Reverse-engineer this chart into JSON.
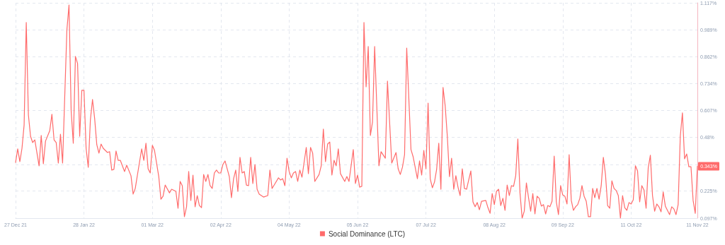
{
  "chart_data": {
    "type": "line",
    "x": [
      "2021-12-27",
      "2021-12-28",
      "2021-12-29",
      "2021-12-30",
      "2021-12-31",
      "2022-01-01",
      "2022-01-02",
      "2022-01-03",
      "2022-01-04",
      "2022-01-05",
      "2022-01-07",
      "2022-01-08",
      "2022-01-09",
      "2022-01-10",
      "2022-01-12",
      "2022-01-13",
      "2022-01-14",
      "2022-01-15",
      "2022-01-16",
      "2022-01-17",
      "2022-01-18",
      "2022-01-20",
      "2022-01-21",
      "2022-01-22",
      "2022-01-23",
      "2022-01-24",
      "2022-01-25",
      "2022-01-26",
      "2022-01-27",
      "2022-01-28",
      "2022-01-29",
      "2022-01-30",
      "2022-01-31",
      "2022-02-01",
      "2022-02-02",
      "2022-02-03",
      "2022-02-04",
      "2022-02-05",
      "2022-02-06",
      "2022-02-08",
      "2022-02-09",
      "2022-02-10",
      "2022-02-11",
      "2022-02-12",
      "2022-02-13",
      "2022-02-14",
      "2022-02-16",
      "2022-02-17",
      "2022-02-19",
      "2022-02-20",
      "2022-02-21",
      "2022-02-22",
      "2022-02-24",
      "2022-02-25",
      "2022-02-26",
      "2022-02-27",
      "2022-02-28",
      "2022-03-01",
      "2022-03-02",
      "2022-03-04",
      "2022-03-05",
      "2022-03-06",
      "2022-03-07",
      "2022-03-09",
      "2022-03-10",
      "2022-03-12",
      "2022-03-13",
      "2022-03-14",
      "2022-03-15",
      "2022-03-16",
      "2022-03-17",
      "2022-03-18",
      "2022-03-19",
      "2022-03-20",
      "2022-03-21",
      "2022-03-22",
      "2022-03-23",
      "2022-03-24",
      "2022-03-25",
      "2022-03-26",
      "2022-03-27",
      "2022-03-28",
      "2022-03-29",
      "2022-03-30",
      "2022-03-31",
      "2022-04-01",
      "2022-04-02",
      "2022-04-03",
      "2022-04-04",
      "2022-04-06",
      "2022-04-07",
      "2022-04-08",
      "2022-04-09",
      "2022-04-10",
      "2022-04-11",
      "2022-04-12",
      "2022-04-13",
      "2022-04-14",
      "2022-04-15",
      "2022-04-16",
      "2022-04-17",
      "2022-04-18",
      "2022-04-19",
      "2022-04-20",
      "2022-04-22",
      "2022-04-24",
      "2022-04-25",
      "2022-04-26",
      "2022-04-27",
      "2022-04-29",
      "2022-04-30",
      "2022-05-01",
      "2022-05-02",
      "2022-05-03",
      "2022-05-04",
      "2022-05-05",
      "2022-05-06",
      "2022-05-07",
      "2022-05-08",
      "2022-05-09",
      "2022-05-10",
      "2022-05-12",
      "2022-05-13",
      "2022-05-14",
      "2022-05-15",
      "2022-05-16",
      "2022-05-18",
      "2022-05-19",
      "2022-05-20",
      "2022-05-21",
      "2022-05-22",
      "2022-05-23",
      "2022-05-24",
      "2022-05-25",
      "2022-05-26",
      "2022-05-27",
      "2022-05-28",
      "2022-05-30",
      "2022-05-31",
      "2022-06-01",
      "2022-06-03",
      "2022-06-04",
      "2022-06-05",
      "2022-06-06",
      "2022-06-07",
      "2022-06-08",
      "2022-06-09",
      "2022-06-10",
      "2022-06-11",
      "2022-06-12",
      "2022-06-13",
      "2022-06-15",
      "2022-06-16",
      "2022-06-18",
      "2022-06-19",
      "2022-06-21",
      "2022-06-23",
      "2022-06-24",
      "2022-06-25",
      "2022-06-26",
      "2022-06-27",
      "2022-06-28",
      "2022-06-30",
      "2022-07-01",
      "2022-07-03",
      "2022-07-04",
      "2022-07-05",
      "2022-07-06",
      "2022-07-07",
      "2022-07-08",
      "2022-07-09",
      "2022-07-10",
      "2022-07-11",
      "2022-07-12",
      "2022-07-13",
      "2022-07-14",
      "2022-07-15",
      "2022-07-16",
      "2022-07-17",
      "2022-07-18",
      "2022-07-19",
      "2022-07-20",
      "2022-07-21",
      "2022-07-22",
      "2022-07-23",
      "2022-07-24",
      "2022-07-25",
      "2022-07-26",
      "2022-07-28",
      "2022-07-29",
      "2022-07-30",
      "2022-07-31",
      "2022-08-01",
      "2022-08-02",
      "2022-08-04",
      "2022-08-05",
      "2022-08-06",
      "2022-08-07",
      "2022-08-08",
      "2022-08-09",
      "2022-08-10",
      "2022-08-11",
      "2022-08-12",
      "2022-08-13",
      "2022-08-14",
      "2022-08-15",
      "2022-08-16",
      "2022-08-17",
      "2022-08-18",
      "2022-08-19",
      "2022-08-20",
      "2022-08-21",
      "2022-08-22",
      "2022-08-23",
      "2022-08-24",
      "2022-08-25",
      "2022-08-26",
      "2022-08-27",
      "2022-08-28",
      "2022-08-29",
      "2022-08-30",
      "2022-08-31",
      "2022-09-01",
      "2022-09-02",
      "2022-09-03",
      "2022-09-04",
      "2022-09-05",
      "2022-09-06",
      "2022-09-07",
      "2022-09-08",
      "2022-09-09",
      "2022-09-10",
      "2022-09-11",
      "2022-09-12",
      "2022-09-13",
      "2022-09-14",
      "2022-09-15",
      "2022-09-16",
      "2022-09-17",
      "2022-09-18",
      "2022-09-19",
      "2022-09-20",
      "2022-09-21",
      "2022-09-22",
      "2022-09-23",
      "2022-09-24",
      "2022-09-25",
      "2022-09-26",
      "2022-09-27",
      "2022-09-28",
      "2022-09-29",
      "2022-09-30",
      "2022-10-01",
      "2022-10-02",
      "2022-10-03",
      "2022-10-04",
      "2022-10-05",
      "2022-10-06",
      "2022-10-07",
      "2022-10-08",
      "2022-10-09",
      "2022-10-10",
      "2022-10-11",
      "2022-10-12",
      "2022-10-13",
      "2022-10-14",
      "2022-10-15",
      "2022-10-16",
      "2022-10-17",
      "2022-10-18",
      "2022-10-19",
      "2022-10-20",
      "2022-10-21",
      "2022-10-22",
      "2022-10-23",
      "2022-10-24",
      "2022-10-25",
      "2022-10-26",
      "2022-10-27",
      "2022-10-28",
      "2022-10-29",
      "2022-10-30",
      "2022-10-31",
      "2022-11-01",
      "2022-11-02",
      "2022-11-03",
      "2022-11-04",
      "2022-11-05",
      "2022-11-06",
      "2022-11-07",
      "2022-11-08",
      "2022-11-09",
      "2022-11-10",
      "2022-11-11"
    ],
    "series": [
      {
        "name": "Social Dominance (LTC)",
        "color": "#ff6b6b",
        "values": [
          0.361,
          0.425,
          0.365,
          0.428,
          0.539,
          1.024,
          0.586,
          0.485,
          0.455,
          0.468,
          0.345,
          0.489,
          0.355,
          0.462,
          0.512,
          0.589,
          0.468,
          0.455,
          0.358,
          0.495,
          0.358,
          0.987,
          1.107,
          0.606,
          0.452,
          0.863,
          0.83,
          0.485,
          0.703,
          0.703,
          0.428,
          0.338,
          0.562,
          0.659,
          0.569,
          0.445,
          0.405,
          0.448,
          0.428,
          0.408,
          0.412,
          0.325,
          0.328,
          0.415,
          0.371,
          0.371,
          0.318,
          0.348,
          0.298,
          0.211,
          0.238,
          0.301,
          0.425,
          0.371,
          0.452,
          0.331,
          0.311,
          0.442,
          0.418,
          0.294,
          0.187,
          0.201,
          0.254,
          0.217,
          0.234,
          0.224,
          0.144,
          0.271,
          0.251,
          0.104,
          0.151,
          0.318,
          0.181,
          0.301,
          0.151,
          0.204,
          0.157,
          0.147,
          0.304,
          0.271,
          0.304,
          0.251,
          0.238,
          0.311,
          0.325,
          0.311,
          0.311,
          0.351,
          0.368,
          0.294,
          0.194,
          0.284,
          0.325,
          0.224,
          0.385,
          0.311,
          0.318,
          0.254,
          0.251,
          0.385,
          0.261,
          0.351,
          0.234,
          0.211,
          0.197,
          0.204,
          0.325,
          0.238,
          0.254,
          0.288,
          0.278,
          0.284,
          0.251,
          0.381,
          0.318,
          0.288,
          0.311,
          0.318,
          0.271,
          0.325,
          0.291,
          0.432,
          0.308,
          0.432,
          0.405,
          0.271,
          0.304,
          0.345,
          0.519,
          0.365,
          0.448,
          0.458,
          0.301,
          0.371,
          0.345,
          0.425,
          0.308,
          0.271,
          0.294,
          0.271,
          0.422,
          0.261,
          0.301,
          0.244,
          0.248,
          1.024,
          0.719,
          0.91,
          0.489,
          0.552,
          0.91,
          0.345,
          0.412,
          0.381,
          0.746,
          0.358,
          0.408,
          0.331,
          0.304,
          0.338,
          0.398,
          0.903,
          0.422,
          0.388,
          0.284,
          0.368,
          0.301,
          0.418,
          0.331,
          0.642,
          0.284,
          0.241,
          0.268,
          0.328,
          0.452,
          0.234,
          0.716,
          0.629,
          0.485,
          0.294,
          0.381,
          0.234,
          0.298,
          0.244,
          0.204,
          0.331,
          0.238,
          0.234,
          0.321,
          0.174,
          0.151,
          0.171,
          0.137,
          0.177,
          0.181,
          0.147,
          0.12,
          0.214,
          0.161,
          0.224,
          0.234,
          0.157,
          0.191,
          0.134,
          0.254,
          0.204,
          0.251,
          0.248,
          0.298,
          0.472,
          0.217,
          0.097,
          0.13,
          0.264,
          0.194,
          0.13,
          0.214,
          0.117,
          0.201,
          0.191,
          0.154,
          0.161,
          0.117,
          0.157,
          0.151,
          0.177,
          0.391,
          0.174,
          0.114,
          0.251,
          0.207,
          0.201,
          0.164,
          0.398,
          0.181,
          0.134,
          0.151,
          0.161,
          0.191,
          0.251,
          0.201,
          0.177,
          0.104,
          0.104,
          0.238,
          0.194,
          0.238,
          0.187,
          0.251,
          0.385,
          0.304,
          0.157,
          0.144,
          0.274,
          0.238,
          0.228,
          0.204,
          0.097,
          0.204,
          0.147,
          0.134,
          0.171,
          0.164,
          0.184,
          0.345,
          0.321,
          0.174,
          0.251,
          0.231,
          0.144,
          0.335,
          0.395,
          0.204,
          0.13,
          0.164,
          0.151,
          0.127,
          0.221,
          0.154,
          0.134,
          0.114,
          0.151,
          0.141,
          0.114,
          0.161,
          0.485,
          0.596,
          0.378,
          0.401,
          0.341,
          0.341,
          0.181,
          0.12,
          0.343
        ]
      }
    ],
    "xlim": [
      "2021-12-27",
      "2022-11-11"
    ],
    "xticks": [
      {
        "value": "2021-12-27",
        "label": "27 Dec 21"
      },
      {
        "value": "2022-01-28",
        "label": "28 Jan 22"
      },
      {
        "value": "2022-03-01",
        "label": "01 Mar 22"
      },
      {
        "value": "2022-04-02",
        "label": "02 Apr 22"
      },
      {
        "value": "2022-05-04",
        "label": "04 May 22"
      },
      {
        "value": "2022-06-05",
        "label": "05 Jun 22"
      },
      {
        "value": "2022-07-07",
        "label": "07 Jul 22"
      },
      {
        "value": "2022-08-08",
        "label": "08 Aug 22"
      },
      {
        "value": "2022-09-09",
        "label": "09 Sep 22"
      },
      {
        "value": "2022-10-11",
        "label": "11 Oct 22"
      },
      {
        "value": "2022-11-11",
        "label": "11 Nov 22"
      }
    ],
    "ylim": [
      0.097,
      1.117
    ],
    "yticks": [
      {
        "value": 0.097,
        "label": "0.097%"
      },
      {
        "value": 0.225,
        "label": "0.225%"
      },
      {
        "value": 0.352,
        "label": null
      },
      {
        "value": 0.48,
        "label": "0.48%"
      },
      {
        "value": 0.607,
        "label": "0.607%"
      },
      {
        "value": 0.734,
        "label": "0.734%"
      },
      {
        "value": 0.862,
        "label": "0.862%"
      },
      {
        "value": 0.989,
        "label": "0.989%"
      },
      {
        "value": 1.117,
        "label": "1.117%"
      }
    ],
    "annotations": [
      {
        "text": "0.343%",
        "x": "2022-11-11",
        "y": 0.343
      }
    ],
    "grid": true,
    "legend": "bottom",
    "marker": "none",
    "line_style": "solid"
  }
}
